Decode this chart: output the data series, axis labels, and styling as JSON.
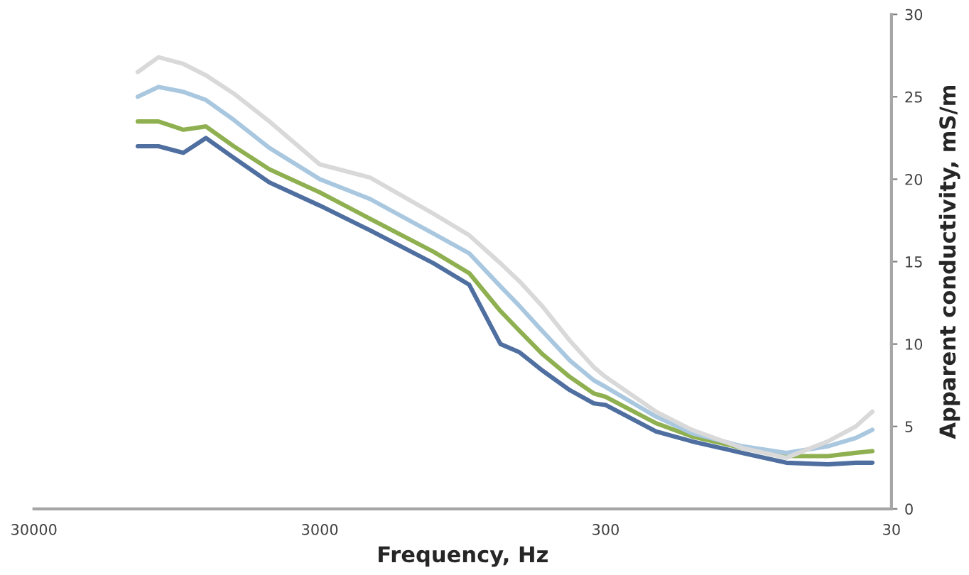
{
  "chart_data": {
    "type": "line",
    "xlabel": "Frequency, Hz",
    "ylabel": "Apparent conductivity, mS/m",
    "log": "x",
    "xlim": [
      30000,
      30
    ],
    "xticks": [
      30000,
      3000,
      300,
      30
    ],
    "ylim": [
      0,
      30
    ],
    "yticks": [
      0,
      5,
      10,
      15,
      20,
      25,
      30
    ],
    "grid": false,
    "legend": false,
    "marker": "none",
    "line_style": "solid",
    "x": [
      13000,
      11000,
      9000,
      7500,
      6000,
      4500,
      3000,
      2000,
      1200,
      900,
      700,
      600,
      500,
      400,
      330,
      300,
      200,
      150,
      100,
      70,
      50,
      40,
      35
    ],
    "series": [
      {
        "color": "#4f6fa0",
        "values": [
          22.0,
          22.0,
          21.6,
          22.5,
          21.3,
          19.8,
          18.4,
          16.9,
          14.9,
          13.6,
          10.0,
          9.5,
          8.4,
          7.2,
          6.4,
          6.3,
          4.7,
          4.1,
          3.4,
          2.8,
          2.7,
          2.8,
          2.8
        ]
      },
      {
        "color": "#8fb050",
        "values": [
          23.5,
          23.5,
          23.0,
          23.2,
          22.0,
          20.6,
          19.2,
          17.6,
          15.6,
          14.3,
          12.0,
          10.8,
          9.4,
          8.0,
          7.0,
          6.8,
          5.2,
          4.4,
          3.7,
          3.2,
          3.2,
          3.4,
          3.5
        ]
      },
      {
        "color": "#a9c8e0",
        "values": [
          25.0,
          25.6,
          25.3,
          24.8,
          23.6,
          21.9,
          20.0,
          18.8,
          16.7,
          15.5,
          13.5,
          12.3,
          10.8,
          9.0,
          7.8,
          7.4,
          5.6,
          4.6,
          3.8,
          3.4,
          3.8,
          4.3,
          4.8
        ]
      },
      {
        "color": "#d9d9d9",
        "values": [
          26.5,
          27.4,
          27.0,
          26.3,
          25.2,
          23.5,
          20.9,
          20.1,
          17.9,
          16.6,
          14.9,
          13.8,
          12.3,
          10.2,
          8.6,
          8.0,
          5.9,
          4.8,
          3.7,
          3.1,
          4.1,
          5.0,
          5.9
        ]
      }
    ]
  }
}
